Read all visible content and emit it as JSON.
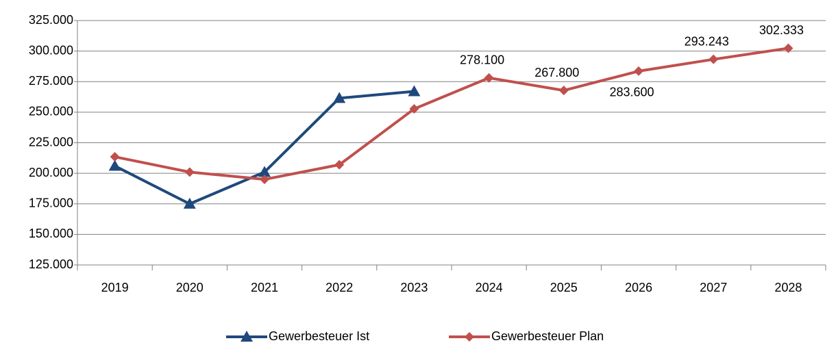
{
  "chart_data": {
    "type": "line",
    "categories": [
      "2019",
      "2020",
      "2021",
      "2022",
      "2023",
      "2024",
      "2025",
      "2026",
      "2027",
      "2028"
    ],
    "series": [
      {
        "name": "Gewerbesteuer Ist",
        "color": "#1f497d",
        "marker": "triangle",
        "values": [
          206000,
          175000,
          201000,
          261500,
          267000,
          null,
          null,
          null,
          null,
          null
        ]
      },
      {
        "name": "Gewerbesteuer Plan",
        "color": "#c0504d",
        "marker": "diamond",
        "values": [
          213500,
          201000,
          195000,
          207000,
          252700,
          278100,
          267800,
          283600,
          293243,
          302333
        ],
        "value_labels": [
          null,
          null,
          null,
          null,
          null,
          "278.100",
          "267.800",
          "283.600",
          "293.243",
          "302.333"
        ]
      }
    ],
    "ylim": [
      125000,
      325000
    ],
    "yticks": [
      {
        "value": 125000,
        "label": "125.000"
      },
      {
        "value": 150000,
        "label": "150.000"
      },
      {
        "value": 175000,
        "label": "175.000"
      },
      {
        "value": 200000,
        "label": "200.000"
      },
      {
        "value": 225000,
        "label": "225.000"
      },
      {
        "value": 250000,
        "label": "250.000"
      },
      {
        "value": 275000,
        "label": "275.000"
      },
      {
        "value": 300000,
        "label": "300.000"
      },
      {
        "value": 325000,
        "label": "325.000"
      }
    ],
    "grid": true,
    "legend": "bottom"
  }
}
